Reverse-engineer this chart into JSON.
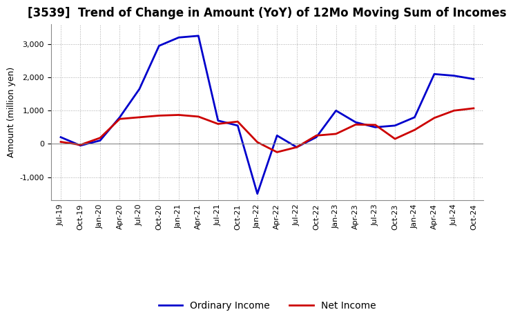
{
  "title": "[3539]  Trend of Change in Amount (YoY) of 12Mo Moving Sum of Incomes",
  "ylabel": "Amount (million yen)",
  "x_labels": [
    "Jul-19",
    "Oct-19",
    "Jan-20",
    "Apr-20",
    "Jul-20",
    "Oct-20",
    "Jan-21",
    "Apr-21",
    "Jul-21",
    "Oct-21",
    "Jan-22",
    "Apr-22",
    "Jul-22",
    "Oct-22",
    "Jan-23",
    "Apr-23",
    "Jul-23",
    "Oct-23",
    "Jan-24",
    "Apr-24",
    "Jul-24",
    "Oct-24"
  ],
  "ordinary_income": [
    200,
    -50,
    100,
    800,
    1650,
    2950,
    3200,
    3250,
    700,
    550,
    -1500,
    250,
    -100,
    200,
    1000,
    650,
    500,
    550,
    800,
    2100,
    2050,
    1950
  ],
  "net_income": [
    60,
    -30,
    180,
    750,
    800,
    850,
    870,
    820,
    600,
    670,
    50,
    -250,
    -100,
    250,
    300,
    580,
    570,
    150,
    420,
    780,
    1000,
    1070
  ],
  "ordinary_color": "#0000CC",
  "net_color": "#CC0000",
  "background_color": "#FFFFFF",
  "ylim": [
    -1700,
    3600
  ],
  "yticks": [
    -1000,
    0,
    1000,
    2000,
    3000
  ],
  "grid_color": "#AAAAAA",
  "line_width": 2.0,
  "title_fontsize": 12,
  "axis_fontsize": 9,
  "tick_fontsize": 8,
  "legend_fontsize": 10
}
